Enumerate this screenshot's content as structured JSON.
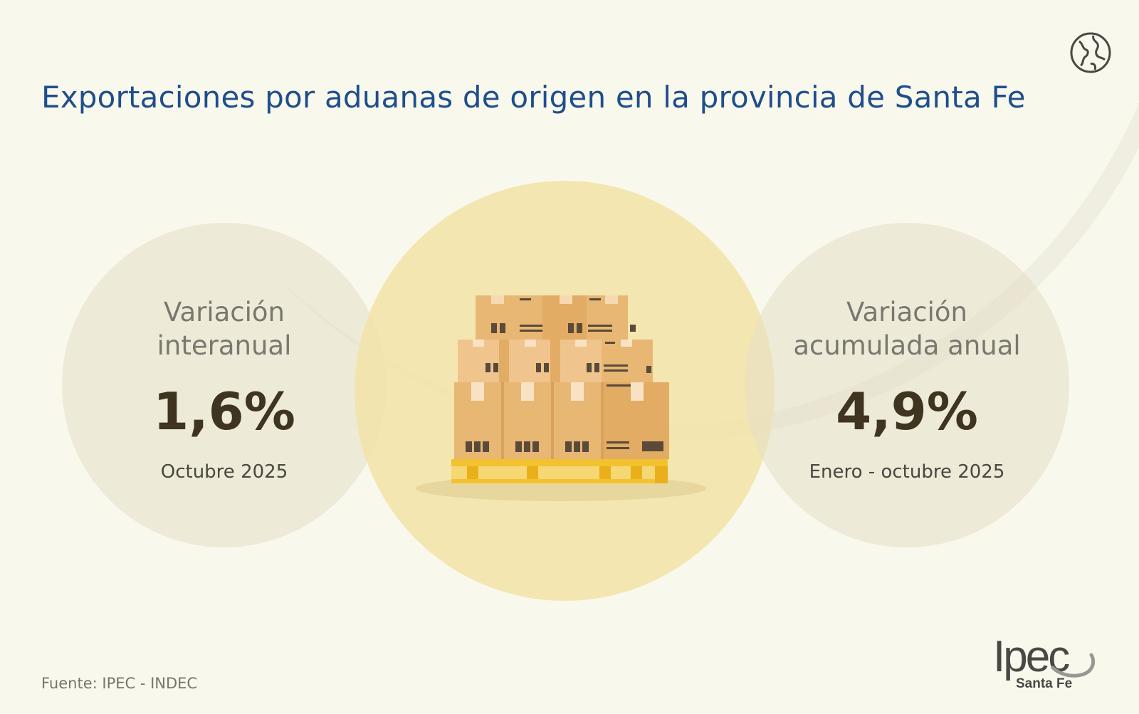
{
  "title": "Exportaciones por aduanas de origen en la provincia de Santa Fe",
  "stats": [
    {
      "label_line1": "Variación",
      "label_line2": "interanual",
      "value": "1,6%",
      "period": "Octubre 2025"
    },
    {
      "label_line1": "Variación",
      "label_line2": "acumulada anual",
      "value": "4,9%",
      "period": "Enero - octubre 2025"
    }
  ],
  "source": "Fuente: IPEC - INDEC",
  "logo": {
    "word": "Ipec",
    "sub": "Santa Fe"
  },
  "icons": {
    "globe": "globe-icon",
    "pallet": "pallet-boxes-icon"
  },
  "colors": {
    "background": "#f9f8ec",
    "title": "#1f4e8c",
    "value": "#3f3420",
    "center_circle": "#f2e3aa",
    "side_circles": "#e6dec8"
  }
}
